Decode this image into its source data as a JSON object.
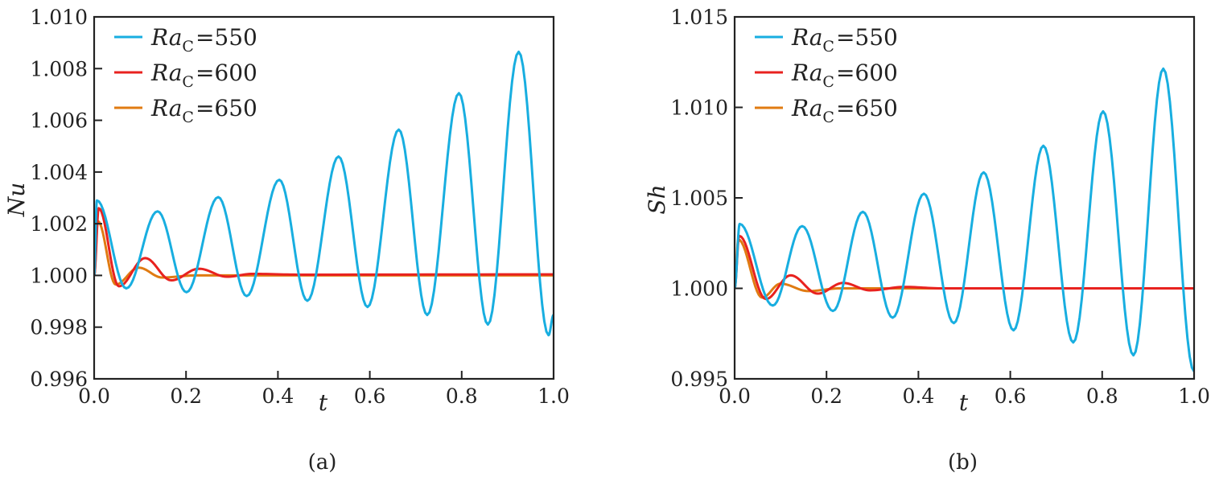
{
  "chart_data": [
    {
      "type": "line",
      "caption": "(a)",
      "xlabel": "t",
      "ylabel": "Nu",
      "xlim": [
        0,
        1
      ],
      "ylim": [
        0.996,
        1.01
      ],
      "xticks": [
        "0.0",
        "0.2",
        "0.4",
        "0.6",
        "0.8",
        "1.0"
      ],
      "yticks": [
        "0.996",
        "0.998",
        "1.000",
        "1.002",
        "1.004",
        "1.006",
        "1.008",
        "1.010"
      ],
      "legend_position": "top-left",
      "series": [
        {
          "name": "Ra_C = 550",
          "label_main": "Ra",
          "label_sub": "C",
          "label_value": "=550",
          "color": "#18aee0",
          "x": [
            0,
            0.006,
            0.07,
            0.138,
            0.201,
            0.27,
            0.332,
            0.403,
            0.464,
            0.532,
            0.595,
            0.663,
            0.725,
            0.794,
            0.857,
            0.924,
            0.989,
            1.0
          ],
          "y": [
            1.0,
            1.0029,
            0.9995,
            1.00248,
            0.99935,
            1.00303,
            0.9992,
            1.0037,
            0.99902,
            1.0046,
            0.99878,
            1.00564,
            0.99847,
            1.00705,
            0.9981,
            1.00865,
            0.99769,
            0.99847
          ]
        },
        {
          "name": "Ra_C = 600",
          "label_main": "Ra",
          "label_sub": "C",
          "label_value": "=600",
          "color": "#e8221f",
          "x": [
            0,
            0.01,
            0.054,
            0.111,
            0.168,
            0.228,
            0.289,
            0.345,
            0.45,
            1.0
          ],
          "y": [
            1.0,
            1.0026,
            0.99958,
            1.00067,
            0.99981,
            1.00026,
            0.99995,
            1.00006,
            1.00003,
            1.00004
          ]
        },
        {
          "name": "Ra_C = 650",
          "label_main": "Ra",
          "label_sub": "C",
          "label_value": "=650",
          "color": "#e07b12",
          "x": [
            0,
            0.008,
            0.047,
            0.097,
            0.148,
            0.22,
            1.0
          ],
          "y": [
            1.0,
            1.0021,
            0.99965,
            1.0003,
            0.99992,
            1.0,
            1.0
          ]
        }
      ]
    },
    {
      "type": "line",
      "caption": "(b)",
      "xlabel": "t",
      "ylabel": "Sh",
      "xlim": [
        0,
        1
      ],
      "ylim": [
        0.995,
        1.015
      ],
      "xticks": [
        "0.0",
        "0.2",
        "0.4",
        "0.6",
        "0.8",
        "1.0"
      ],
      "yticks": [
        "0.995",
        "1.000",
        "1.005",
        "1.010",
        "1.015"
      ],
      "legend_position": "top-left",
      "series": [
        {
          "name": "Ra_C = 550",
          "label_main": "Ra",
          "label_sub": "C",
          "label_value": "=550",
          "color": "#18aee0",
          "x": [
            0,
            0.011,
            0.083,
            0.147,
            0.214,
            0.279,
            0.344,
            0.412,
            0.477,
            0.542,
            0.607,
            0.672,
            0.737,
            0.802,
            0.868,
            0.933,
            1.0
          ],
          "y": [
            1.0,
            1.00356,
            0.99905,
            1.00344,
            0.99875,
            1.00423,
            0.99838,
            1.00523,
            0.99808,
            1.00641,
            0.99768,
            1.00788,
            0.99701,
            1.00978,
            0.9963,
            1.01214,
            0.99541
          ]
        },
        {
          "name": "Ra_C = 600",
          "label_main": "Ra",
          "label_sub": "C",
          "label_value": "=600",
          "color": "#e8221f",
          "x": [
            0,
            0.01,
            0.068,
            0.122,
            0.181,
            0.236,
            0.295,
            0.37,
            0.45,
            1.0
          ],
          "y": [
            1.0,
            1.0029,
            0.99941,
            1.00072,
            0.99971,
            1.0003,
            0.99989,
            1.00008,
            1.0,
            1.0
          ]
        },
        {
          "name": "Ra_C = 650",
          "label_main": "Ra",
          "label_sub": "C",
          "label_value": "=650",
          "color": "#e07b12",
          "x": [
            0,
            0.008,
            0.06,
            0.1,
            0.16,
            0.23,
            1.0
          ],
          "y": [
            1.0,
            1.0027,
            0.99949,
            1.00026,
            0.99985,
            1.0,
            1.0
          ]
        }
      ]
    }
  ]
}
